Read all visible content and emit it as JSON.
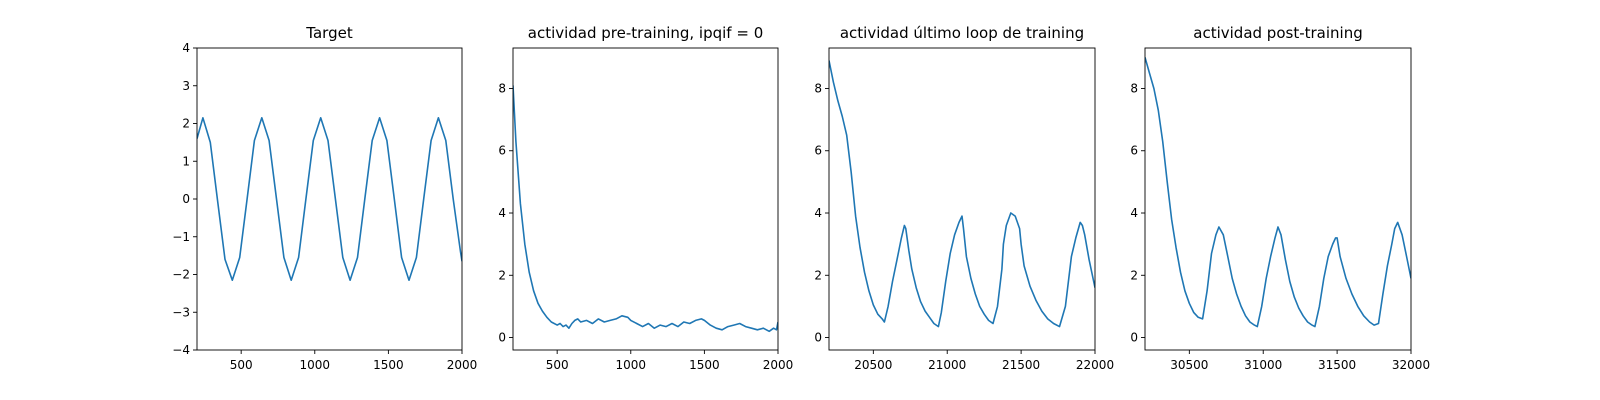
{
  "colors": {
    "line": "#1f77b4",
    "axes": "#000000",
    "background": "#ffffff"
  },
  "chart_data": [
    {
      "type": "line",
      "title": "Target",
      "xlim": [
        200,
        2000
      ],
      "ylim": [
        -4,
        4
      ],
      "xticks": [
        500,
        1000,
        1500,
        2000
      ],
      "xtick_labels": [
        "500",
        "1000",
        "1500",
        "2000"
      ],
      "yticks": [
        -4,
        -3,
        -2,
        -1,
        0,
        1,
        2,
        3,
        4
      ],
      "ytick_labels": [
        "−4",
        "−3",
        "−2",
        "−1",
        "0",
        "1",
        "2",
        "3",
        "4"
      ],
      "grid": false,
      "series": [
        {
          "x": [
            200,
            240,
            290,
            340,
            390,
            440,
            490,
            540,
            590,
            640,
            690,
            740,
            790,
            840,
            890,
            940,
            990,
            1040,
            1090,
            1140,
            1190,
            1240,
            1290,
            1340,
            1390,
            1440,
            1490,
            1540,
            1590,
            1640,
            1690,
            1740,
            1790,
            1840,
            1890,
            1940,
            1990,
            2000
          ],
          "y": [
            1.6,
            2.15,
            1.5,
            -0.05,
            -1.6,
            -2.15,
            -1.55,
            0.0,
            1.55,
            2.15,
            1.55,
            0.0,
            -1.55,
            -2.15,
            -1.55,
            0.0,
            1.55,
            2.15,
            1.55,
            0.0,
            -1.55,
            -2.15,
            -1.55,
            0.0,
            1.55,
            2.15,
            1.55,
            0.0,
            -1.55,
            -2.15,
            -1.55,
            0.0,
            1.55,
            2.15,
            1.55,
            0.0,
            -1.4,
            -1.65
          ]
        }
      ]
    },
    {
      "type": "line",
      "title": "actividad pre-training, ipqif = 0",
      "xlim": [
        200,
        2000
      ],
      "ylim": [
        -0.4,
        9.3
      ],
      "xticks": [
        500,
        1000,
        1500,
        2000
      ],
      "xtick_labels": [
        "500",
        "1000",
        "1500",
        "2000"
      ],
      "yticks": [
        0,
        2,
        4,
        6,
        8
      ],
      "ytick_labels": [
        "0",
        "2",
        "4",
        "6",
        "8"
      ],
      "grid": false,
      "series": [
        {
          "x": [
            200,
            220,
            250,
            280,
            310,
            340,
            370,
            400,
            430,
            460,
            500,
            520,
            540,
            560,
            580,
            600,
            620,
            640,
            660,
            700,
            740,
            780,
            820,
            860,
            900,
            940,
            980,
            1000,
            1040,
            1080,
            1120,
            1160,
            1200,
            1240,
            1280,
            1320,
            1360,
            1400,
            1440,
            1480,
            1500,
            1540,
            1580,
            1620,
            1660,
            1700,
            1740,
            1780,
            1820,
            1860,
            1900,
            1940,
            1970,
            1990,
            2000
          ],
          "y": [
            8.1,
            6.3,
            4.3,
            3.0,
            2.1,
            1.5,
            1.1,
            0.85,
            0.65,
            0.5,
            0.4,
            0.45,
            0.35,
            0.4,
            0.3,
            0.45,
            0.55,
            0.6,
            0.5,
            0.55,
            0.45,
            0.6,
            0.5,
            0.55,
            0.6,
            0.7,
            0.65,
            0.55,
            0.45,
            0.35,
            0.45,
            0.3,
            0.4,
            0.35,
            0.45,
            0.35,
            0.5,
            0.45,
            0.55,
            0.6,
            0.55,
            0.4,
            0.3,
            0.25,
            0.35,
            0.4,
            0.45,
            0.35,
            0.3,
            0.25,
            0.3,
            0.2,
            0.3,
            0.25,
            0.5
          ]
        }
      ]
    },
    {
      "type": "line",
      "title": "actividad último loop de training",
      "xlim": [
        20200,
        22000
      ],
      "ylim": [
        -0.4,
        9.3
      ],
      "xticks": [
        20500,
        21000,
        21500,
        22000
      ],
      "xtick_labels": [
        "20500",
        "21000",
        "21500",
        "22000"
      ],
      "yticks": [
        0,
        2,
        4,
        6,
        8
      ],
      "ytick_labels": [
        "0",
        "2",
        "4",
        "6",
        "8"
      ],
      "grid": false,
      "series": [
        {
          "x": [
            20200,
            20230,
            20260,
            20290,
            20320,
            20350,
            20380,
            20410,
            20440,
            20470,
            20500,
            20530,
            20560,
            20575,
            20600,
            20630,
            20660,
            20690,
            20710,
            20720,
            20740,
            20760,
            20790,
            20820,
            20850,
            20880,
            20910,
            20940,
            20960,
            20990,
            21020,
            21050,
            21080,
            21100,
            21110,
            21130,
            21160,
            21190,
            21220,
            21250,
            21280,
            21310,
            21340,
            21370,
            21380,
            21400,
            21430,
            21460,
            21490,
            21500,
            21520,
            21560,
            21600,
            21640,
            21680,
            21720,
            21760,
            21800,
            21820,
            21840,
            21870,
            21900,
            21915,
            21930,
            21960,
            22000
          ],
          "y": [
            8.9,
            8.2,
            7.6,
            7.1,
            6.5,
            5.3,
            3.9,
            2.9,
            2.1,
            1.5,
            1.05,
            0.75,
            0.6,
            0.5,
            1.0,
            1.8,
            2.5,
            3.2,
            3.6,
            3.5,
            2.8,
            2.2,
            1.6,
            1.15,
            0.85,
            0.65,
            0.45,
            0.35,
            0.8,
            1.8,
            2.7,
            3.3,
            3.7,
            3.9,
            3.5,
            2.6,
            1.9,
            1.4,
            1.0,
            0.75,
            0.55,
            0.45,
            1.0,
            2.2,
            3.0,
            3.6,
            4.0,
            3.9,
            3.5,
            3.0,
            2.3,
            1.65,
            1.2,
            0.85,
            0.6,
            0.45,
            0.35,
            1.0,
            1.8,
            2.6,
            3.2,
            3.7,
            3.6,
            3.3,
            2.5,
            1.6
          ]
        }
      ]
    },
    {
      "type": "line",
      "title": "actividad post-training",
      "xlim": [
        30200,
        32000
      ],
      "ylim": [
        -0.4,
        9.3
      ],
      "xticks": [
        30500,
        31000,
        31500,
        32000
      ],
      "xtick_labels": [
        "30500",
        "31000",
        "31500",
        "32000"
      ],
      "yticks": [
        0,
        2,
        4,
        6,
        8
      ],
      "ytick_labels": [
        "0",
        "2",
        "4",
        "6",
        "8"
      ],
      "grid": false,
      "series": [
        {
          "x": [
            30200,
            30230,
            30260,
            30290,
            30320,
            30350,
            30380,
            30410,
            30440,
            30470,
            30500,
            30530,
            30560,
            30590,
            30620,
            30650,
            30680,
            30700,
            30730,
            30760,
            30790,
            30820,
            30850,
            30880,
            30910,
            30940,
            30960,
            30990,
            31020,
            31050,
            31080,
            31100,
            31120,
            31150,
            31180,
            31210,
            31240,
            31270,
            31300,
            31330,
            31350,
            31380,
            31410,
            31440,
            31470,
            31490,
            31500,
            31520,
            31560,
            31600,
            31640,
            31680,
            31720,
            31750,
            31780,
            31810,
            31840,
            31870,
            31890,
            31910,
            31940,
            31970,
            32000
          ],
          "y": [
            9.0,
            8.5,
            8.0,
            7.3,
            6.3,
            5.0,
            3.8,
            2.9,
            2.1,
            1.5,
            1.1,
            0.8,
            0.65,
            0.6,
            1.5,
            2.7,
            3.3,
            3.55,
            3.3,
            2.6,
            1.9,
            1.4,
            1.0,
            0.7,
            0.5,
            0.4,
            0.35,
            1.0,
            1.9,
            2.6,
            3.2,
            3.55,
            3.3,
            2.5,
            1.8,
            1.3,
            0.95,
            0.7,
            0.5,
            0.4,
            0.35,
            1.0,
            1.9,
            2.6,
            3.0,
            3.2,
            3.2,
            2.6,
            1.9,
            1.4,
            1.0,
            0.7,
            0.5,
            0.4,
            0.45,
            1.4,
            2.3,
            3.0,
            3.5,
            3.7,
            3.3,
            2.6,
            1.9
          ]
        }
      ]
    }
  ]
}
